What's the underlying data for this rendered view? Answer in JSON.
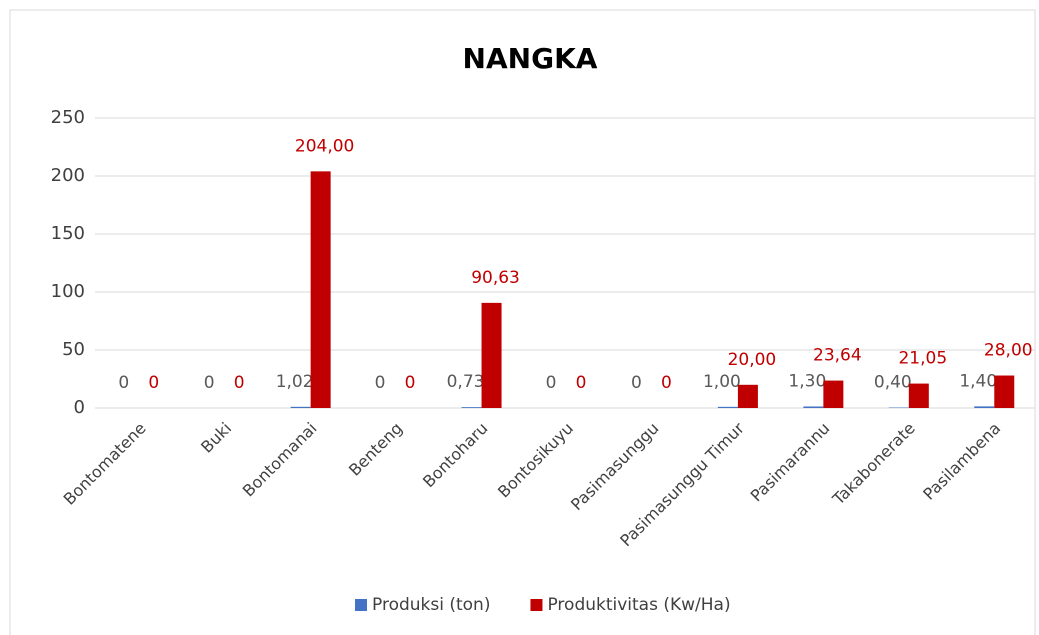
{
  "chart_data": {
    "type": "bar",
    "title": "NANGKA",
    "categories": [
      "Bontomatene",
      "Buki",
      "Bontomanai",
      "Benteng",
      "Bontoharu",
      "Bontosikuyu",
      "Pasimasunggu",
      "Pasimasunggu Timur",
      "Pasimarannu",
      "Takabonerate",
      "Pasilambena"
    ],
    "series": [
      {
        "name": "Produksi (ton)",
        "color": "#4472c4",
        "values": [
          0,
          0,
          1.02,
          0,
          0.73,
          0,
          0,
          1.0,
          1.3,
          0.4,
          1.4
        ],
        "value_labels": [
          "0",
          "0",
          "1,02",
          "0",
          "0,73",
          "0",
          "0",
          "1,00",
          "1,30",
          "0,40",
          "1,40"
        ],
        "label_color": "#595959"
      },
      {
        "name": "Produktivitas (Kw/Ha)",
        "color": "#c00000",
        "values": [
          0,
          0,
          204,
          0,
          90.63,
          0,
          0,
          20,
          23.64,
          21.05,
          28
        ],
        "value_labels": [
          "0",
          "0",
          "204,00",
          "0",
          "90,63",
          "0",
          "0",
          "20,00",
          "23,64",
          "21,05",
          "28,00"
        ],
        "label_color": "#c00000"
      }
    ],
    "ylim": [
      0,
      250
    ],
    "yticks": [
      0,
      50,
      100,
      150,
      200,
      250
    ],
    "grid": true,
    "legend": "bottom"
  }
}
